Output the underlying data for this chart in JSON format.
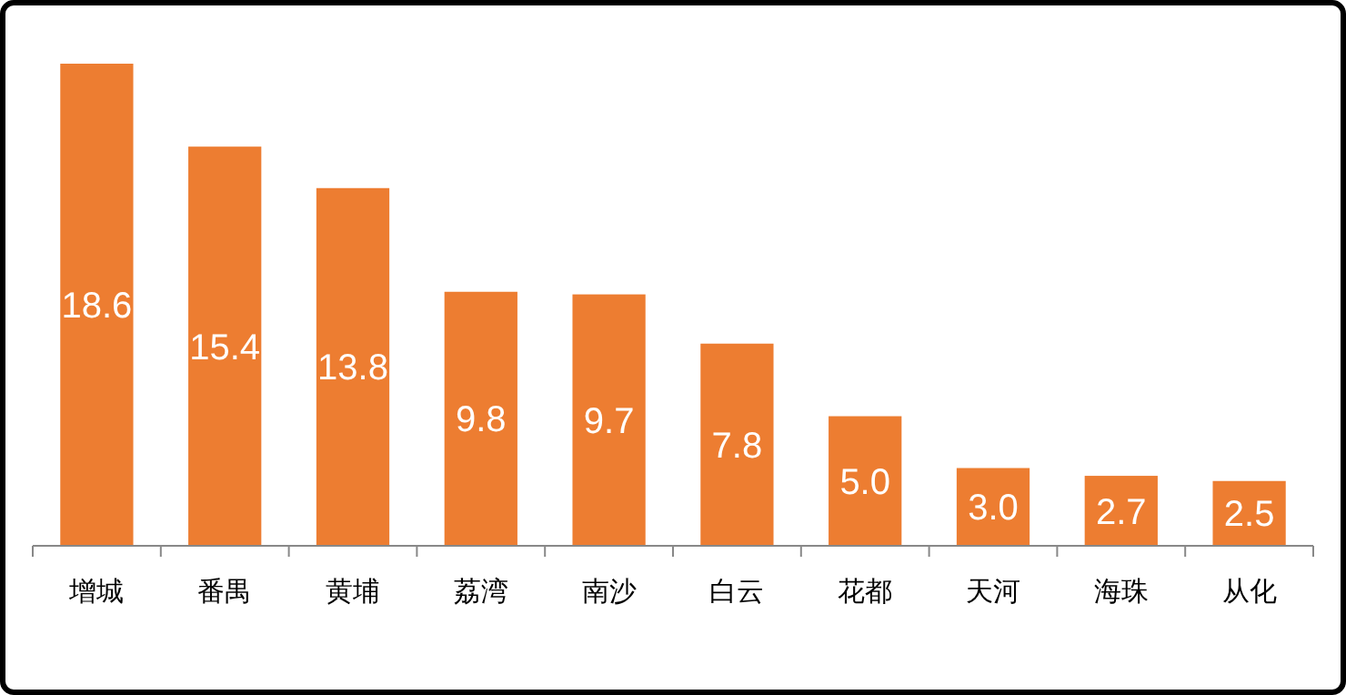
{
  "chart_data": {
    "type": "bar",
    "categories": [
      "增城",
      "番禺",
      "黄埔",
      "荔湾",
      "南沙",
      "白云",
      "花都",
      "天河",
      "海珠",
      "从化"
    ],
    "values": [
      18.6,
      15.4,
      13.8,
      9.8,
      9.7,
      7.8,
      5.0,
      3.0,
      2.7,
      2.5
    ],
    "value_labels": [
      "18.6",
      "15.4",
      "13.8",
      "9.8",
      "9.7",
      "7.8",
      "5.0",
      "3.0",
      "2.7",
      "2.5"
    ],
    "color": "#ed7d31"
  }
}
